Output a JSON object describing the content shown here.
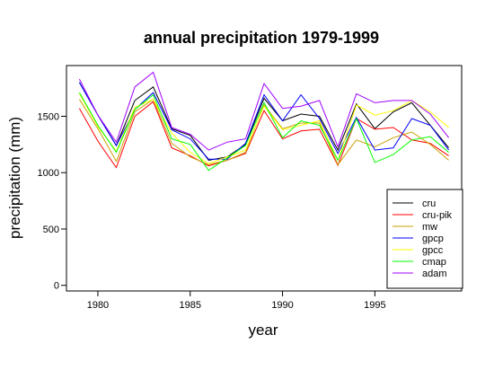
{
  "chart_data": {
    "type": "line",
    "title": "annual precipitation 1979-1999",
    "xlabel": "year",
    "ylabel": "precipitation (mm)",
    "xlim": [
      1978.3,
      1999.7
    ],
    "ylim": [
      -50,
      1950
    ],
    "xticks": [
      1980,
      1985,
      1990,
      1995
    ],
    "yticks": [
      0,
      500,
      1000,
      1500
    ],
    "legend_position": "bottom-right",
    "grid": false,
    "x": [
      1979,
      1980,
      1981,
      1982,
      1983,
      1984,
      1985,
      1986,
      1987,
      1988,
      1989,
      1990,
      1991,
      1992,
      1993,
      1994,
      1995,
      1996,
      1997,
      1998,
      1999
    ],
    "series": [
      {
        "name": "cru",
        "color": "#000000",
        "values": [
          1800,
          1510,
          1240,
          1640,
          1760,
          1390,
          1330,
          1110,
          1140,
          1250,
          1660,
          1460,
          1520,
          1500,
          1200,
          1610,
          1390,
          1540,
          1620,
          1420,
          1220
        ]
      },
      {
        "name": "cru-pik",
        "color": "#ff0000",
        "values": [
          1570,
          1280,
          1045,
          1500,
          1630,
          1220,
          1150,
          1060,
          1110,
          1170,
          1550,
          1300,
          1370,
          1385,
          1065,
          1480,
          1385,
          1400,
          1290,
          1260,
          1150
        ]
      },
      {
        "name": "mw",
        "color": "#c8a000",
        "values": [
          1650,
          1390,
          1100,
          1540,
          1650,
          1260,
          1140,
          1070,
          1110,
          1180,
          1600,
          1390,
          1440,
          1440,
          1070,
          1290,
          1230,
          1310,
          1360,
          1250,
          1110
        ]
      },
      {
        "name": "gpcp",
        "color": "#0000ff",
        "values": [
          1800,
          1510,
          1240,
          1560,
          1710,
          1380,
          1300,
          1120,
          1120,
          1260,
          1690,
          1460,
          1690,
          1480,
          1170,
          1490,
          1200,
          1220,
          1480,
          1420,
          1200
        ]
      },
      {
        "name": "gpcc",
        "color": "#ffff00",
        "values": [
          1700,
          1410,
          1190,
          1580,
          1650,
          1350,
          1180,
          1080,
          1140,
          1200,
          1590,
          1380,
          1420,
          1460,
          1110,
          1600,
          1510,
          1550,
          1640,
          1540,
          1400
        ]
      },
      {
        "name": "cmap",
        "color": "#00ff00",
        "values": [
          1710,
          1420,
          1180,
          1560,
          1690,
          1300,
          1250,
          1020,
          1130,
          1240,
          1620,
          1310,
          1460,
          1420,
          1110,
          1480,
          1090,
          1160,
          1290,
          1320,
          1180
        ]
      },
      {
        "name": "adam",
        "color": "#a000ff",
        "values": [
          1830,
          1510,
          1270,
          1760,
          1890,
          1400,
          1340,
          1200,
          1270,
          1300,
          1790,
          1570,
          1590,
          1640,
          1230,
          1700,
          1620,
          1640,
          1640,
          1520,
          1310
        ]
      }
    ]
  }
}
